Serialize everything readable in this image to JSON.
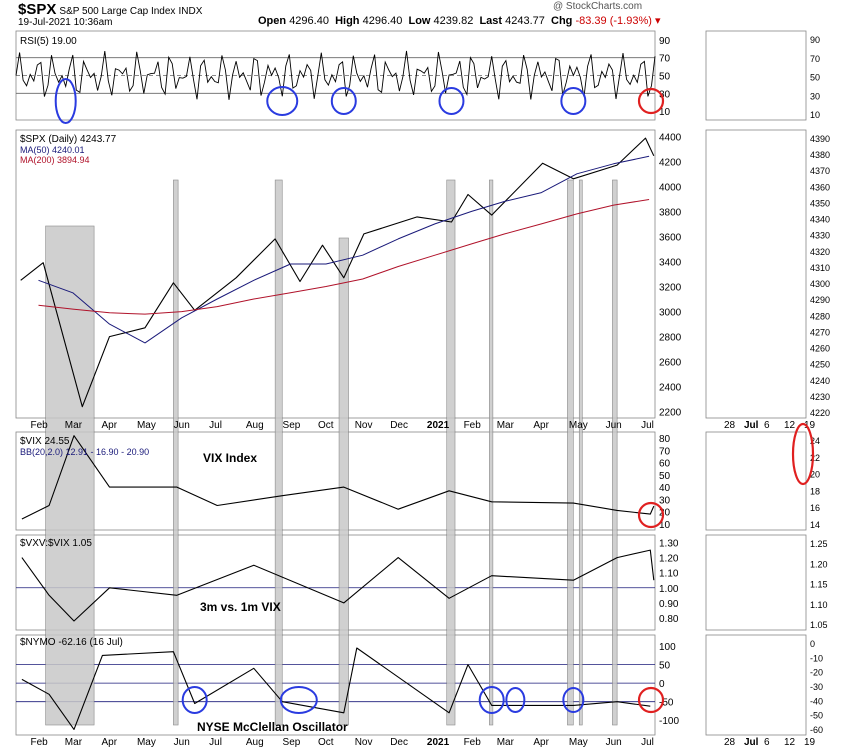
{
  "header": {
    "symbol": "$SPX",
    "name": "S&P 500 Large Cap Index",
    "exchange": "INDX",
    "date": "19-Jul-2021 10:36am",
    "open_label": "Open",
    "open": "4296.40",
    "high_label": "High",
    "high": "4296.40",
    "low_label": "Low",
    "low": "4239.82",
    "last_label": "Last",
    "last": "4243.77",
    "chg_label": "Chg",
    "chg": "-83.39 (-1.93%)",
    "watermark": "@ StockCharts.com"
  },
  "colors": {
    "ink": "#000000",
    "ma50": "#1a1a7a",
    "ma200": "#b0122a",
    "highlight": "#c8c8c8",
    "circle_blue": "#2a3be0",
    "circle_red": "#e02020",
    "rsi_fill_up": "#6b8e5e",
    "rsi_fill_down": "#9a6a6a"
  },
  "xaxis": {
    "months": [
      "Feb",
      "Mar",
      "Apr",
      "May",
      "Jun",
      "Jul",
      "Aug",
      "Sep",
      "Oct",
      "Nov",
      "Dec",
      "2021",
      "Feb",
      "Mar",
      "Apr",
      "May",
      "Jun",
      "Jul"
    ],
    "zoom_ticks": [
      "28",
      "Jul",
      "6",
      "12",
      "19"
    ]
  },
  "chart_data": [
    {
      "type": "line",
      "panel": "rsi",
      "title": "RSI(5) 19.00",
      "y_ticks": [
        90,
        70,
        50,
        30,
        10
      ],
      "ylim": [
        0,
        100
      ],
      "reference_lines": [
        70,
        50,
        30
      ],
      "zoom_y_ticks": [
        90,
        70,
        50,
        30,
        10
      ]
    },
    {
      "type": "line",
      "panel": "price",
      "title": "$SPX (Daily) 4243.77",
      "series": [
        {
          "name": "MA(50) 4240.01",
          "x": [
            "2020-02",
            "2020-03",
            "2020-04",
            "2020-05",
            "2020-06",
            "2020-07",
            "2020-08",
            "2020-09",
            "2020-10",
            "2020-11",
            "2020-12",
            "2021-01",
            "2021-02",
            "2021-03",
            "2021-04",
            "2021-05",
            "2021-06",
            "2021-07"
          ],
          "values": [
            3250,
            3150,
            2900,
            2750,
            2950,
            3100,
            3250,
            3380,
            3380,
            3450,
            3580,
            3700,
            3800,
            3880,
            3950,
            4100,
            4180,
            4240
          ]
        },
        {
          "name": "MA(200) 3894.94",
          "x": [
            "2020-02",
            "2020-03",
            "2020-04",
            "2020-05",
            "2020-06",
            "2020-07",
            "2020-08",
            "2020-09",
            "2020-10",
            "2020-11",
            "2020-12",
            "2021-01",
            "2021-02",
            "2021-03",
            "2021-04",
            "2021-05",
            "2021-06",
            "2021-07"
          ],
          "values": [
            3050,
            3020,
            2990,
            2980,
            3000,
            3040,
            3100,
            3150,
            3200,
            3260,
            3360,
            3450,
            3540,
            3620,
            3700,
            3780,
            3850,
            3895
          ]
        },
        {
          "name": "$SPX",
          "x": [
            "2020-01-31",
            "2020-02-19",
            "2020-03-23",
            "2020-04-15",
            "2020-05-15",
            "2020-06-08",
            "2020-06-26",
            "2020-07-31",
            "2020-09-02",
            "2020-09-23",
            "2020-10-12",
            "2020-10-30",
            "2020-11-16",
            "2020-12-31",
            "2021-01-29",
            "2021-02-12",
            "2021-03-04",
            "2021-04-16",
            "2021-05-12",
            "2021-06-18",
            "2021-07-12",
            "2021-07-19"
          ],
          "values": [
            3250,
            3390,
            2240,
            2800,
            2870,
            3230,
            3010,
            3270,
            3580,
            3240,
            3530,
            3270,
            3620,
            3756,
            3715,
            3935,
            3770,
            4185,
            4060,
            4170,
            4385,
            4244
          ]
        }
      ],
      "y_ticks": [
        4400,
        4200,
        4000,
        3800,
        3600,
        3400,
        3200,
        3000,
        2800,
        2600,
        2400,
        2200
      ],
      "ylim": [
        2150,
        4450
      ],
      "zoom_y_ticks": [
        4390,
        4380,
        4370,
        4360,
        4350,
        4340,
        4330,
        4320,
        4310,
        4300,
        4290,
        4280,
        4270,
        4260,
        4250,
        4240,
        4230,
        4220
      ]
    },
    {
      "type": "line",
      "panel": "vix",
      "title": "$VIX 24.55",
      "series": [
        {
          "name": "BB(20,2.0) 12.91 - 16.90 - 20.90"
        },
        {
          "name": "$VIX",
          "x": [
            "2020-02-01",
            "2020-02-24",
            "2020-03-16",
            "2020-04-15",
            "2020-06-11",
            "2020-07-15",
            "2020-09-08",
            "2020-10-30",
            "2020-12-15",
            "2021-01-27",
            "2021-03-04",
            "2021-05-12",
            "2021-06-18",
            "2021-07-16",
            "2021-07-19"
          ],
          "values": [
            14,
            25,
            82,
            40,
            40,
            25,
            33,
            40,
            22,
            37,
            28,
            27,
            21,
            18,
            24.55
          ]
        }
      ],
      "annotations": [
        "VIX Index"
      ],
      "y_ticks": [
        80,
        70,
        60,
        50,
        40,
        30,
        20,
        10
      ],
      "ylim": [
        5,
        85
      ],
      "zoom_y_ticks": [
        24,
        22,
        20,
        18,
        16,
        14
      ]
    },
    {
      "type": "line",
      "panel": "vxv_vix",
      "title": "$VXV:$VIX 1.05",
      "annotations": [
        "3m vs. 1m VIX"
      ],
      "series": [
        {
          "name": "$VXV:$VIX",
          "x": [
            "2020-02-01",
            "2020-02-24",
            "2020-03-16",
            "2020-04-15",
            "2020-06-11",
            "2020-08-15",
            "2020-10-30",
            "2020-12-15",
            "2021-01-27",
            "2021-03-04",
            "2021-05-12",
            "2021-06-18",
            "2021-07-16",
            "2021-07-19"
          ],
          "values": [
            1.2,
            0.95,
            0.78,
            1.0,
            0.95,
            1.15,
            0.9,
            1.2,
            0.93,
            1.08,
            1.05,
            1.2,
            1.25,
            1.05
          ]
        }
      ],
      "reference_lines": [
        1.0
      ],
      "y_ticks": [
        1.3,
        1.2,
        1.1,
        1.0,
        0.9,
        0.8
      ],
      "ylim": [
        0.72,
        1.35
      ],
      "zoom_y_ticks": [
        1.25,
        1.2,
        1.15,
        1.1,
        1.05
      ]
    },
    {
      "type": "line",
      "panel": "nymo",
      "title": "$NYMO -62.16 (16 Jul)",
      "annotations": [
        "NYSE McClellan Oscillator"
      ],
      "series": [
        {
          "name": "$NYMO",
          "x": [
            "2020-02-01",
            "2020-02-24",
            "2020-03-16",
            "2020-04-09",
            "2020-06-08",
            "2020-06-26",
            "2020-08-15",
            "2020-09-08",
            "2020-10-30",
            "2020-11-10",
            "2021-01-27",
            "2021-02-12",
            "2021-03-04",
            "2021-05-12",
            "2021-06-18",
            "2021-07-16"
          ],
          "values": [
            10,
            -30,
            -125,
            75,
            85,
            -55,
            40,
            -50,
            -80,
            95,
            -80,
            50,
            -60,
            -60,
            -50,
            -62.16
          ]
        }
      ],
      "reference_lines": [
        50,
        0,
        -50
      ],
      "y_ticks": [
        100,
        50,
        0,
        -50,
        -100
      ],
      "ylim": [
        -140,
        130
      ],
      "zoom_y_ticks": [
        0,
        -10,
        -20,
        -30,
        -40,
        -50,
        -60
      ]
    }
  ]
}
